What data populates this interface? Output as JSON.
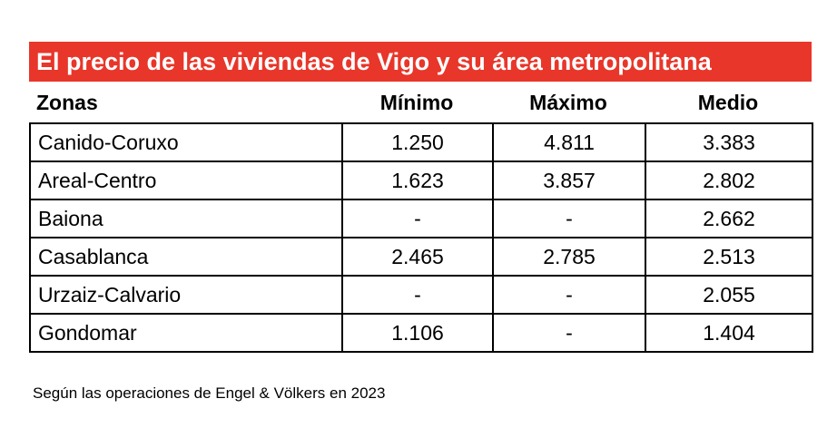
{
  "title": "El precio de las viviendas de Vigo y su área metropolitana",
  "columns": {
    "zona": "Zonas",
    "minimo": "Mínimo",
    "maximo": "Máximo",
    "medio": "Medio"
  },
  "rows": [
    {
      "zona": "Canido-Coruxo",
      "minimo": "1.250",
      "maximo": "4.811",
      "medio": "3.383"
    },
    {
      "zona": "Areal-Centro",
      "minimo": "1.623",
      "maximo": "3.857",
      "medio": "2.802"
    },
    {
      "zona": "Baiona",
      "minimo": "-",
      "maximo": "-",
      "medio": "2.662"
    },
    {
      "zona": "Casablanca",
      "minimo": "2.465",
      "maximo": "2.785",
      "medio": "2.513"
    },
    {
      "zona": "Urzaiz-Calvario",
      "minimo": "-",
      "maximo": "-",
      "medio": "2.055"
    },
    {
      "zona": "Gondomar",
      "minimo": "1.106",
      "maximo": "-",
      "medio": "1.404"
    }
  ],
  "footnote": "Según las operaciones de Engel & Völkers en 2023",
  "colors": {
    "title_background": "#e8362a",
    "title_text": "#ffffff",
    "border": "#000000"
  }
}
